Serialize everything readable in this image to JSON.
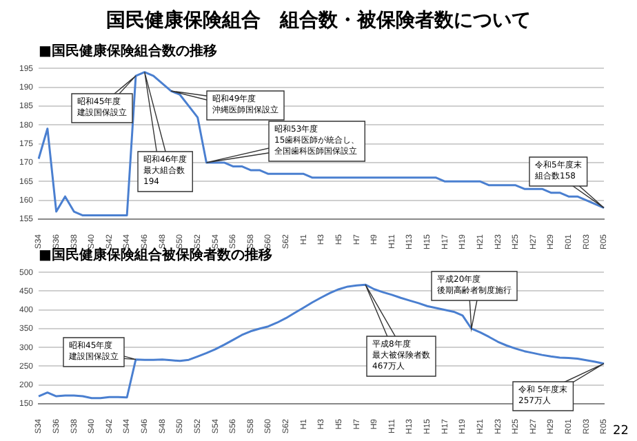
{
  "chart_data": [
    {
      "type": "line",
      "title": "国民健康保険組合　組合数・被保険者数について",
      "subtitle": "■国民健康保険組合数の推移",
      "categories": [
        "S34",
        null,
        "S36",
        null,
        "S38",
        null,
        "S40",
        null,
        "S42",
        null,
        "S44",
        null,
        "S46",
        null,
        "S48",
        null,
        "S50",
        null,
        "S52",
        null,
        "S54",
        null,
        "S56",
        null,
        "S58",
        null,
        "S60",
        null,
        "S62",
        null,
        "H1",
        null,
        "H3",
        null,
        "H5",
        null,
        "H7",
        null,
        "H9",
        null,
        "H11",
        null,
        "H13",
        null,
        "H15",
        null,
        "H17",
        null,
        "H19",
        null,
        "H21",
        null,
        "H23",
        null,
        "H25",
        null,
        "H27",
        null,
        "H29",
        null,
        "R01",
        null,
        "R03",
        null,
        "R05"
      ],
      "values": [
        171,
        179,
        157,
        161,
        157,
        156,
        156,
        156,
        156,
        156,
        156,
        193,
        194,
        193,
        191,
        189,
        188,
        185,
        182,
        170,
        170,
        170,
        169,
        169,
        168,
        168,
        167,
        167,
        167,
        167,
        167,
        166,
        166,
        166,
        166,
        166,
        166,
        166,
        166,
        166,
        166,
        166,
        166,
        166,
        166,
        166,
        165,
        165,
        165,
        165,
        165,
        164,
        164,
        164,
        164,
        163,
        163,
        163,
        162,
        162,
        161,
        161,
        160,
        159,
        158
      ],
      "color": "#4a7fd0",
      "ylim": [
        155,
        195
      ],
      "yticks": [
        155,
        160,
        165,
        170,
        175,
        180,
        185,
        190,
        195
      ],
      "grid": "y",
      "marker": "none",
      "annotations": [
        "昭和45年度建設国保設立",
        "昭和46年度最大組合数194",
        "昭和49年度沖縄医師国保設立",
        "昭和53年度15歯科医師が統合し、全国歯科医師国保設立",
        "令和5年度末組合数158"
      ]
    },
    {
      "type": "line",
      "title": "■国民健康保険組合被保険者数の推移",
      "categories": [
        "S34",
        null,
        "S36",
        null,
        "S38",
        null,
        "S40",
        null,
        "S42",
        null,
        "S44",
        null,
        "S46",
        null,
        "S48",
        null,
        "S50",
        null,
        "S52",
        null,
        "S54",
        null,
        "S56",
        null,
        "S58",
        null,
        "S60",
        null,
        "S62",
        null,
        "H1",
        null,
        "H3",
        null,
        "H5",
        null,
        "H7",
        null,
        "H9",
        null,
        "H11",
        null,
        "H13",
        null,
        "H15",
        null,
        "H17",
        null,
        "H19",
        null,
        "H21",
        null,
        "H23",
        null,
        "H25",
        null,
        "H27",
        null,
        "H29",
        null,
        "R01",
        null,
        "R03",
        null,
        "R05"
      ],
      "values": [
        170,
        180,
        170,
        172,
        172,
        170,
        165,
        165,
        168,
        168,
        167,
        268,
        267,
        267,
        268,
        266,
        264,
        267,
        276,
        285,
        295,
        307,
        320,
        333,
        343,
        350,
        356,
        366,
        378,
        392,
        406,
        420,
        433,
        445,
        455,
        462,
        465,
        467,
        455,
        447,
        440,
        432,
        425,
        418,
        410,
        405,
        400,
        395,
        385,
        350,
        340,
        328,
        315,
        305,
        297,
        290,
        285,
        280,
        276,
        273,
        272,
        270,
        266,
        262,
        257
      ],
      "color": "#4a7fd0",
      "ylim": [
        150,
        500
      ],
      "yticks": [
        150,
        200,
        250,
        300,
        350,
        400,
        450,
        500
      ],
      "grid": "y",
      "marker": "none",
      "annotations": [
        "昭和45年度建設国保設立",
        "平成8年度最大被保険者数467万人",
        "平成20年度後期高齢者制度施行",
        "令和 5年度末257万人",
        "22"
      ]
    }
  ]
}
